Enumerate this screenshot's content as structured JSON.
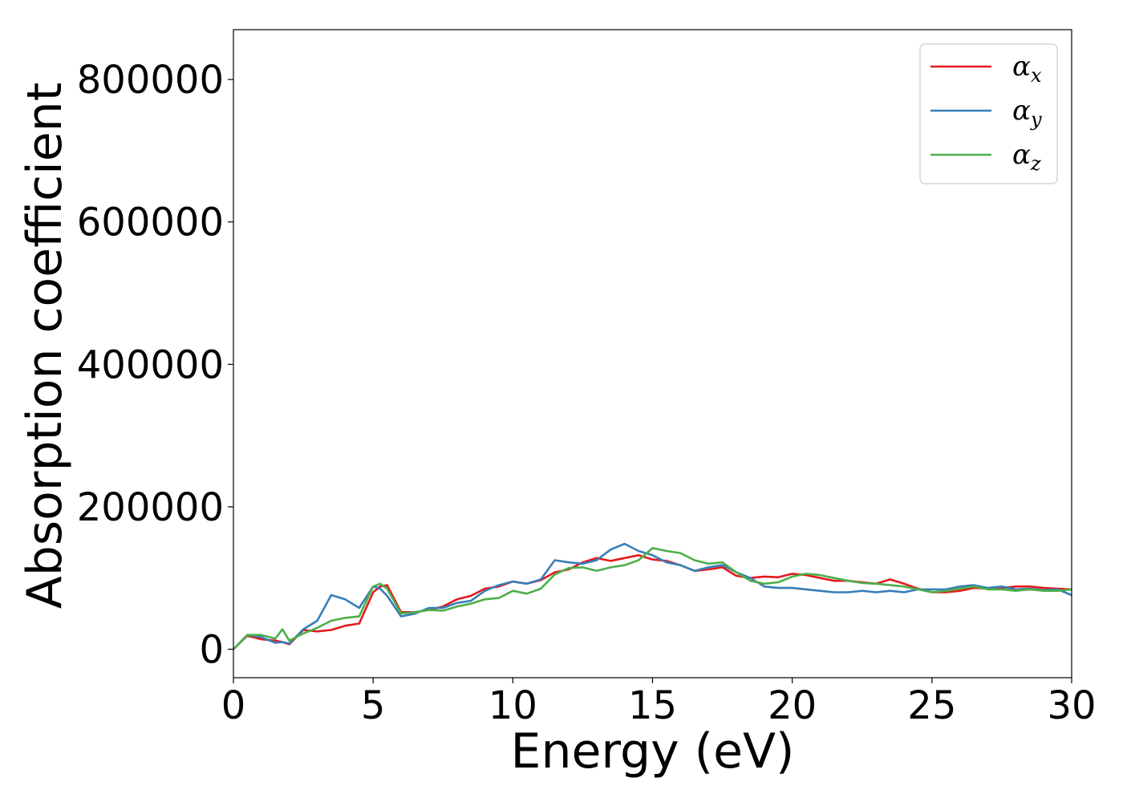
{
  "chart_data": {
    "type": "line",
    "xlabel": "Energy (eV)",
    "ylabel": "Absorption coefficient",
    "xlim": [
      0,
      30
    ],
    "ylim": [
      -40000,
      870000
    ],
    "xticks": [
      0,
      5,
      10,
      15,
      20,
      25,
      30
    ],
    "yticks": [
      0,
      200000,
      400000,
      600000,
      800000
    ],
    "grid": false,
    "legend_position": "top-right",
    "x": [
      0,
      0.5,
      1.0,
      1.5,
      1.75,
      2.0,
      2.5,
      3.0,
      3.5,
      4.0,
      4.5,
      5.0,
      5.25,
      5.5,
      6.0,
      6.5,
      7.0,
      7.5,
      8.0,
      8.5,
      9.0,
      9.5,
      10.0,
      10.5,
      11.0,
      11.5,
      12.0,
      12.5,
      13.0,
      13.5,
      14.0,
      14.5,
      15.0,
      15.5,
      16.0,
      16.5,
      17.0,
      17.5,
      18.0,
      18.5,
      19.0,
      19.5,
      20.0,
      20.5,
      21.0,
      21.5,
      22.0,
      22.5,
      23.0,
      23.5,
      24.0,
      24.5,
      25.0,
      25.5,
      26.0,
      26.5,
      27.0,
      27.5,
      28.0,
      28.5,
      29.0,
      29.5,
      30.0
    ],
    "series": [
      {
        "name": "x",
        "color": "#e41a1c",
        "values": [
          0,
          19000,
          14000,
          12000,
          10000,
          7000,
          27000,
          25000,
          27000,
          33000,
          36000,
          80000,
          88000,
          90000,
          52000,
          52000,
          55000,
          60000,
          70000,
          75000,
          85000,
          88000,
          95000,
          92000,
          97000,
          108000,
          112000,
          122000,
          128000,
          124000,
          128000,
          132000,
          126000,
          124000,
          118000,
          110000,
          112000,
          115000,
          103000,
          100000,
          102000,
          101000,
          106000,
          104000,
          100000,
          96000,
          96000,
          94000,
          92000,
          98000,
          92000,
          85000,
          80000,
          80000,
          82000,
          86000,
          85000,
          86000,
          88000,
          88000,
          86000,
          85000,
          84000
        ]
      },
      {
        "name": "y",
        "color": "#377eb8",
        "values": [
          0,
          20000,
          17000,
          9000,
          10000,
          8000,
          28000,
          40000,
          76000,
          70000,
          58000,
          88000,
          85000,
          75000,
          46000,
          50000,
          58000,
          58000,
          65000,
          68000,
          82000,
          90000,
          95000,
          92000,
          98000,
          125000,
          122000,
          120000,
          125000,
          140000,
          148000,
          138000,
          132000,
          122000,
          118000,
          110000,
          115000,
          118000,
          108000,
          100000,
          88000,
          86000,
          86000,
          84000,
          82000,
          80000,
          80000,
          82000,
          80000,
          82000,
          80000,
          84000,
          84000,
          84000,
          88000,
          90000,
          86000,
          88000,
          84000,
          85000,
          83000,
          84000,
          76000
        ]
      },
      {
        "name": "z",
        "color": "#4daf4a",
        "values": [
          0,
          20000,
          20000,
          15000,
          28000,
          12000,
          22000,
          30000,
          40000,
          44000,
          46000,
          88000,
          92000,
          85000,
          50000,
          52000,
          55000,
          54000,
          60000,
          64000,
          70000,
          72000,
          82000,
          78000,
          85000,
          105000,
          114000,
          115000,
          110000,
          115000,
          118000,
          125000,
          142000,
          138000,
          135000,
          125000,
          120000,
          122000,
          108000,
          96000,
          92000,
          94000,
          102000,
          106000,
          104000,
          100000,
          96000,
          93000,
          92000,
          90000,
          88000,
          84000,
          80000,
          82000,
          85000,
          88000,
          84000,
          84000,
          82000,
          84000,
          82000,
          82000,
          84000
        ]
      }
    ]
  }
}
